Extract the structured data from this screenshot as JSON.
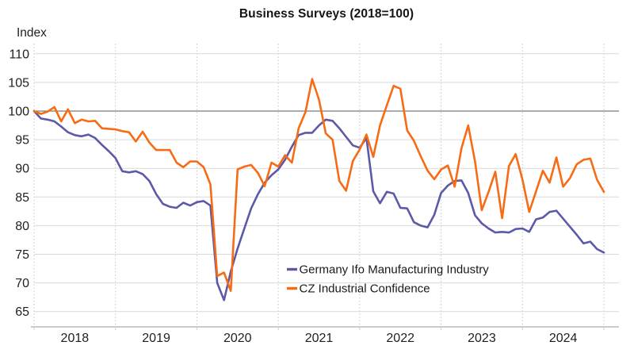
{
  "chart_data": {
    "type": "line",
    "title": "Business Surveys (2018=100)",
    "y_axis_label": "Index",
    "ylim": [
      65,
      110
    ],
    "y_ticks": [
      65,
      70,
      75,
      80,
      85,
      90,
      95,
      100,
      105,
      110
    ],
    "baseline_value": 100,
    "x_years": [
      2018,
      2019,
      2020,
      2021,
      2022,
      2023,
      2024
    ],
    "x_frequency": "monthly",
    "x_start": "2018-01",
    "x_end": "2025-01",
    "grid": {
      "horizontal": true,
      "vertical_dotted_per_year": true
    },
    "legend_position": "inside-bottom-center",
    "colors": {
      "germany_ifo": "#5b59a8",
      "cz_confidence": "#f76b14",
      "grid_light": "#d9d9d9",
      "grid_dotted": "#c4c4c4",
      "baseline": "#7a7a7a",
      "axis": "#cccccc",
      "text": "#1f1f1f"
    },
    "series": [
      {
        "name": "Germany Ifo Manufacturing Industry",
        "color": "#5b59a8",
        "values": [
          100.0,
          98.7,
          98.5,
          98.2,
          97.3,
          96.3,
          95.8,
          95.6,
          95.9,
          95.3,
          94.1,
          93.0,
          91.8,
          89.5,
          89.3,
          89.5,
          89.0,
          87.8,
          85.5,
          83.8,
          83.3,
          83.1,
          84.0,
          83.5,
          84.1,
          84.3,
          83.5,
          70.0,
          67.0,
          72.0,
          76.0,
          79.5,
          83.0,
          85.5,
          87.5,
          88.8,
          89.8,
          91.5,
          93.8,
          95.8,
          96.2,
          96.2,
          97.5,
          98.5,
          98.3,
          97.0,
          95.5,
          94.0,
          93.6,
          95.3,
          86.0,
          83.9,
          85.9,
          85.6,
          83.1,
          83.0,
          80.6,
          80.0,
          79.7,
          81.9,
          85.7,
          87.0,
          87.8,
          87.9,
          85.7,
          81.8,
          80.4,
          79.5,
          78.8,
          78.9,
          78.8,
          79.4,
          79.5,
          78.9,
          81.1,
          81.4,
          82.4,
          82.6,
          81.2,
          79.8,
          78.4,
          76.9,
          77.2,
          75.9,
          75.3
        ]
      },
      {
        "name": "CZ Industrial Confidence",
        "color": "#f76b14",
        "values": [
          100.0,
          99.5,
          99.9,
          100.7,
          98.2,
          100.3,
          97.9,
          98.5,
          98.2,
          98.3,
          97.0,
          96.9,
          96.8,
          96.5,
          96.3,
          94.7,
          96.4,
          94.5,
          93.2,
          93.2,
          93.2,
          91.0,
          90.2,
          91.2,
          91.2,
          90.2,
          87.2,
          71.2,
          71.8,
          68.6,
          89.8,
          90.3,
          90.6,
          89.2,
          86.9,
          91.0,
          90.3,
          92.3,
          91.0,
          97.0,
          99.8,
          105.6,
          102.0,
          96.1,
          95.0,
          87.8,
          86.1,
          91.3,
          93.3,
          95.9,
          92.0,
          97.5,
          101.0,
          104.4,
          103.9,
          96.6,
          94.8,
          92.1,
          89.6,
          88.1,
          89.8,
          90.5,
          86.8,
          93.5,
          97.5,
          91.2,
          82.7,
          85.9,
          89.4,
          81.3,
          90.4,
          92.5,
          88.0,
          82.4,
          86.0,
          89.6,
          87.5,
          91.9,
          86.8,
          88.3,
          90.7,
          91.5,
          91.7,
          88.0,
          85.9
        ]
      }
    ]
  }
}
